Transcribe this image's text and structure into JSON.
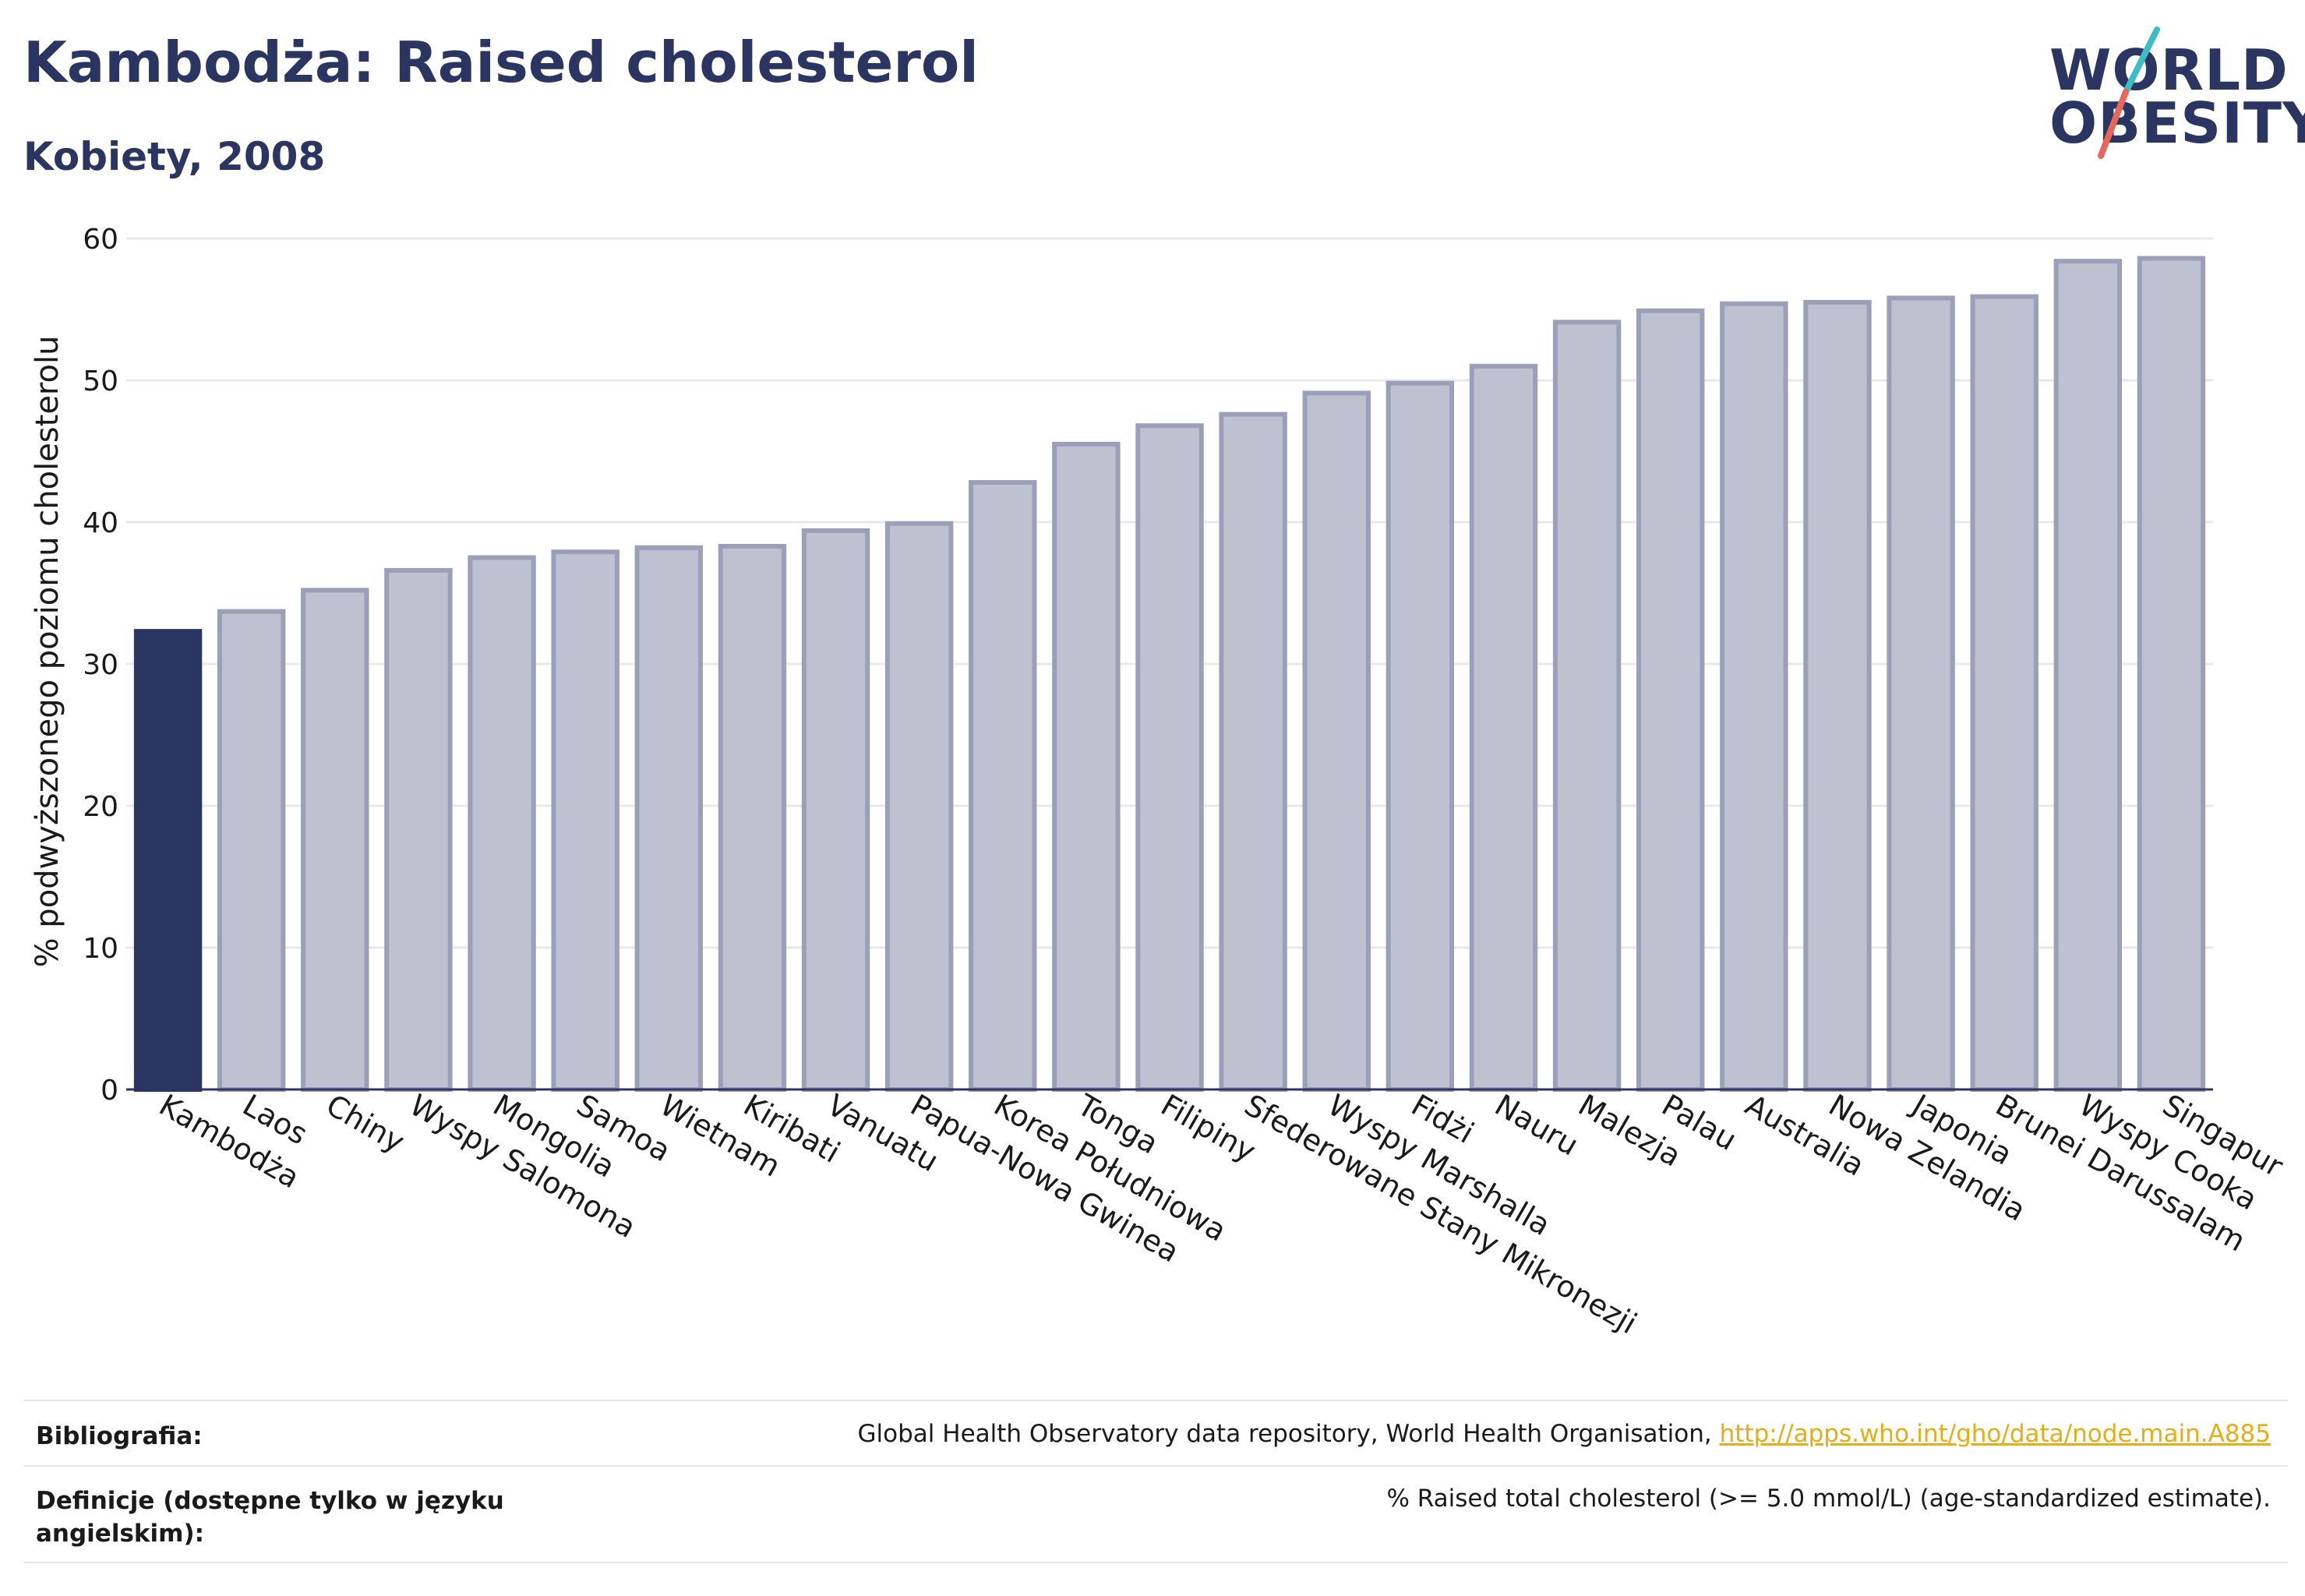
{
  "header": {
    "title": "Kambodża: Raised cholesterol",
    "subtitle": "Kobiety, 2008"
  },
  "logo": {
    "line1": "WORLD",
    "line2": "OBESITY",
    "accent_teal": "#3cbcc3",
    "accent_red": "#e8665a"
  },
  "colors": {
    "highlight": "#2b3561",
    "bar_fill": "#bec1cf",
    "bar_stroke": "#9ba0b8",
    "grid": "#e8e8ec",
    "text": "#2b3561",
    "link": "#e6ad17"
  },
  "chart_data": {
    "type": "bar",
    "ylabel": "% podwyższonego poziomu cholesterolu",
    "ylim": [
      0,
      60
    ],
    "yticks": [
      0,
      10,
      20,
      30,
      40,
      50,
      60
    ],
    "grid": true,
    "highlight_category": "Kambodża",
    "categories": [
      "Kambodża",
      "Laos",
      "Chiny",
      "Wyspy Salomona",
      "Mongolia",
      "Samoa",
      "Wietnam",
      "Kiribati",
      "Vanuatu",
      "Papua-Nowa Gwinea",
      "Korea Południowa",
      "Tonga",
      "Filipiny",
      "Sfederowane Stany Mikronezji",
      "Wyspy Marshalla",
      "Fidżi",
      "Nauru",
      "Malezja",
      "Palau",
      "Australia",
      "Nowa Zelandia",
      "Japonia",
      "Brunei Darussalam",
      "Wyspy Cooka",
      "Singapur"
    ],
    "values": [
      32.3,
      33.7,
      35.2,
      36.6,
      37.5,
      37.9,
      38.2,
      38.3,
      39.4,
      39.9,
      42.8,
      45.5,
      46.8,
      47.6,
      49.1,
      49.8,
      51.0,
      54.1,
      54.9,
      55.4,
      55.5,
      55.8,
      55.9,
      58.4,
      58.6
    ]
  },
  "footer": {
    "bibliography_label": "Bibliografia:",
    "bibliography_text": "Global Health Observatory data repository, World Health Organisation, ",
    "bibliography_link": "http://apps.who.int/gho/data/node.main.A885",
    "definitions_label": "Definicje (dostępne tylko w języku angielskim):",
    "definitions_text": "% Raised total cholesterol (>= 5.0 mmol/L) (age-standardized estimate)."
  }
}
